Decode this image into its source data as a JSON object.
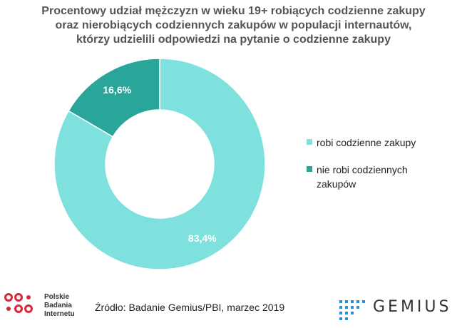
{
  "title_lines": [
    "Procentowy udział mężczyzn w wieku 19+ robiących codzienne zakupy",
    "oraz nierobiących codziennych zakupów w populacji internautów,",
    "którzy udzielili odpowiedzi na pytanie o codzienne zakupy"
  ],
  "chart_data": {
    "type": "pie",
    "subtype": "donut",
    "title": "Procentowy udział mężczyzn w wieku 19+ robiących codzienne zakupy oraz nierobiących codziennych zakupów w populacji internautów, którzy udzielili odpowiedzi na pytanie o codzienne zakupy",
    "categories": [
      "robi codzienne zakupy",
      "nie robi codziennych zakupów"
    ],
    "values": [
      83.4,
      16.6
    ],
    "labels": [
      "83,4%",
      "16,6%"
    ],
    "colors": [
      "#7ee1de",
      "#2aa59a"
    ],
    "legend_position": "right"
  },
  "legend": [
    {
      "label": "robi codzienne zakupy",
      "color": "#7ee1de"
    },
    {
      "label": "nie robi codziennych zakupów",
      "color": "#2aa59a"
    }
  ],
  "footer": {
    "pbi_lines": [
      "Polskie",
      "Badania",
      "Internetu"
    ],
    "source": "Źródło: Badanie Gemius/PBI, marzec 2019",
    "gemius": "GEMIUS"
  }
}
